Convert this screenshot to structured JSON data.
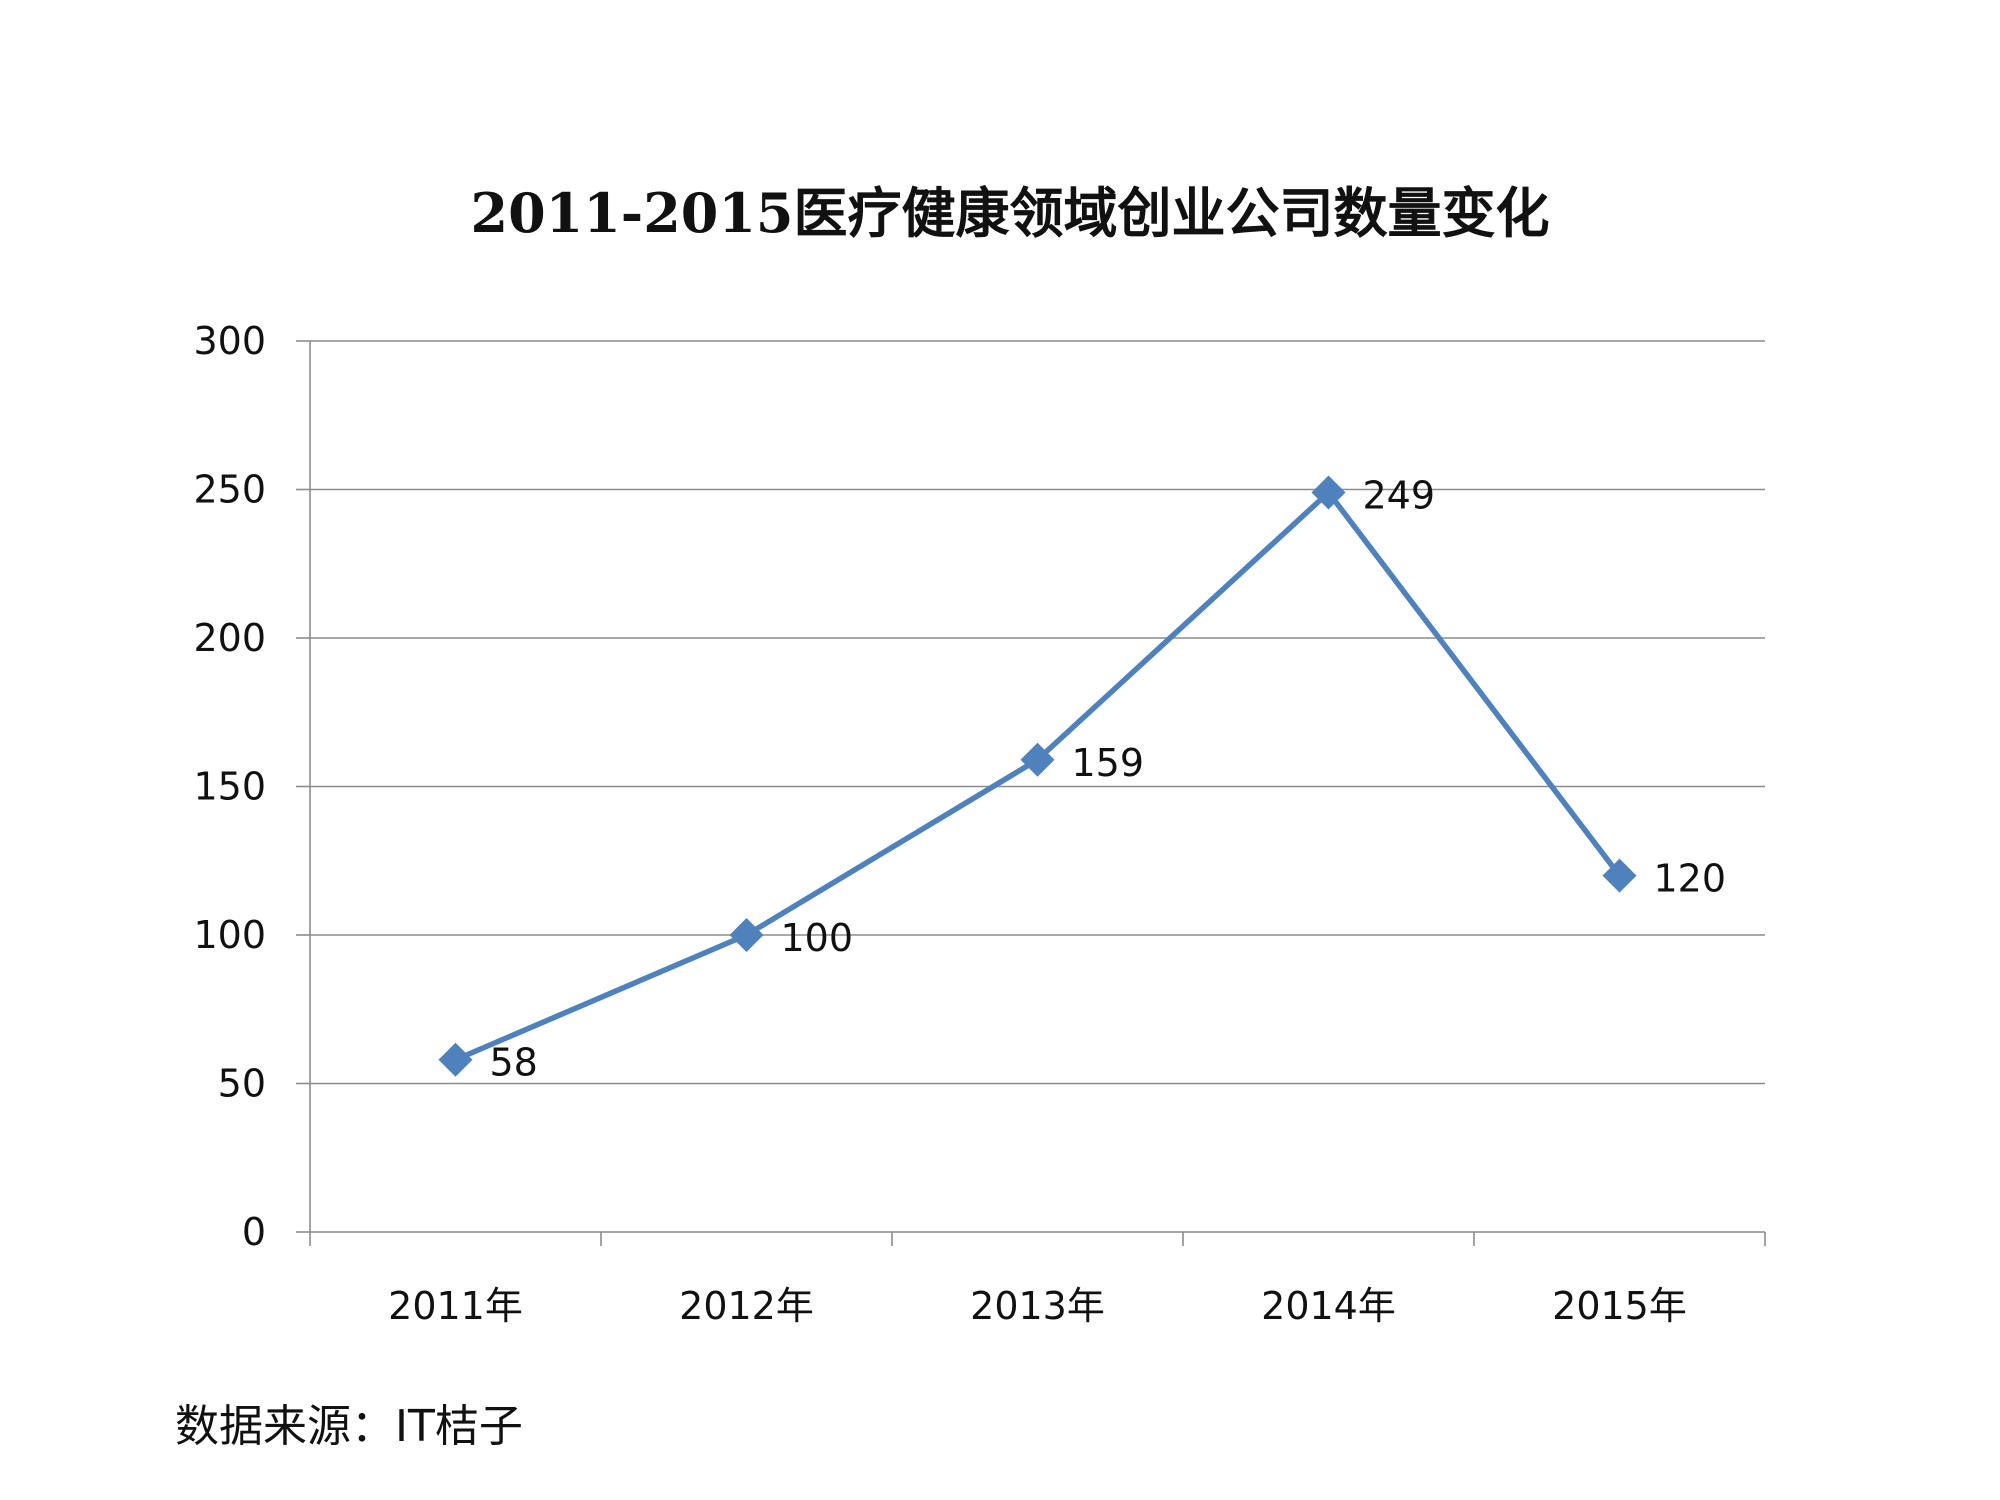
{
  "chart_data": {
    "type": "line",
    "title": "2011-2015医疗健康领域创业公司数量变化",
    "categories": [
      "2011年",
      "2012年",
      "2013年",
      "2014年",
      "2015年"
    ],
    "series": [
      {
        "values": [
          58,
          100,
          159,
          249,
          120
        ],
        "color": "#4F81BD",
        "marker": "diamond"
      }
    ],
    "data_labels": [
      "58",
      "100",
      "159",
      "249",
      "120"
    ],
    "ylim": [
      0,
      300
    ],
    "yticks": [
      0,
      50,
      100,
      150,
      200,
      250,
      300
    ],
    "ytick_labels": [
      "0",
      "50",
      "100",
      "150",
      "200",
      "250",
      "300"
    ],
    "grid": true,
    "legend": "none",
    "xlabel": "",
    "ylabel": ""
  },
  "source_note": "数据来源：IT桔子"
}
